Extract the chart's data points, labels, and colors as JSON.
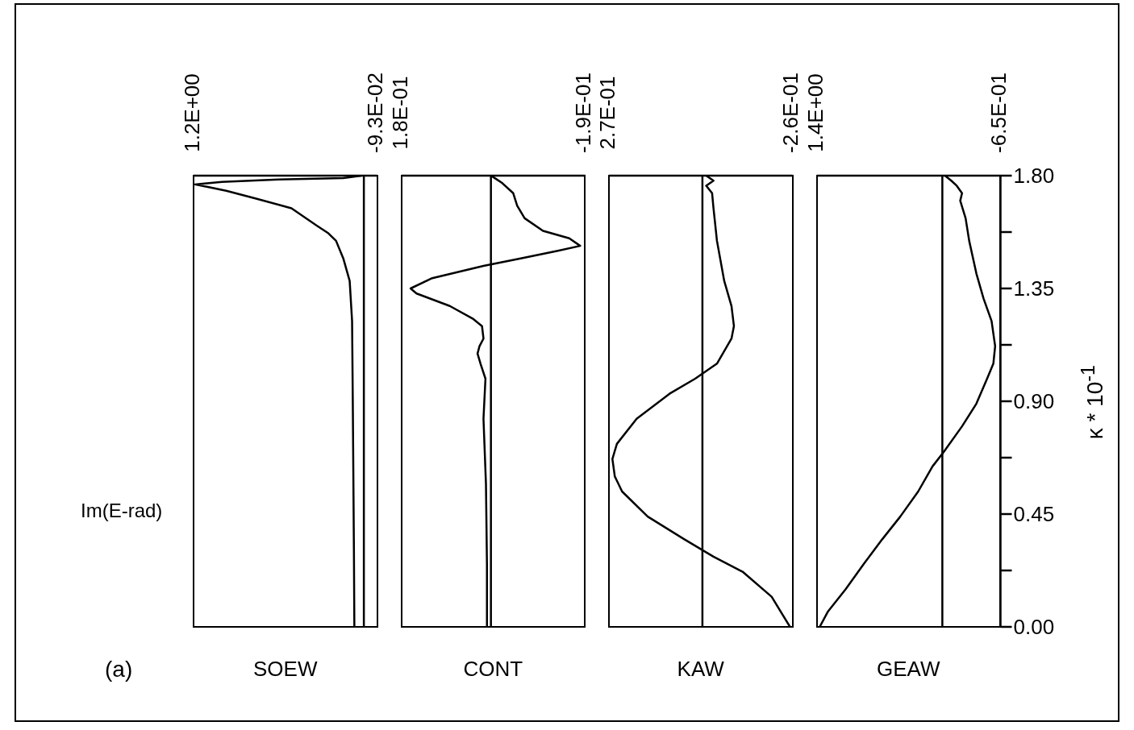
{
  "chart_data": [
    {
      "type": "line",
      "orientation": "horizontal",
      "title": "SOEW",
      "annotations": [
        "(a)",
        "Im(E-rad)"
      ],
      "color": "#000000",
      "tick_labels": "x",
      "ylim": [
        0,
        1.8
      ],
      "xlim": [
        1.2,
        -0.093
      ],
      "xticks": [
        {
          "value": -0.093,
          "label": "-9.3E-02"
        },
        {
          "value": 1.2,
          "label": "1.2E+00"
        }
      ],
      "ref_lines": [
        {
          "axis": "x",
          "value": 0
        }
      ],
      "x": [
        0,
        0.3,
        0.6,
        0.9,
        1.22,
        1.38,
        1.47,
        1.54,
        1.57,
        1.6,
        1.67,
        1.71,
        1.74,
        1.755,
        1.765,
        1.775,
        1.785,
        1.79,
        1.8
      ],
      "values": [
        0.067,
        0.07,
        0.074,
        0.078,
        0.083,
        0.1,
        0.145,
        0.196,
        0.25,
        0.33,
        0.51,
        0.77,
        0.97,
        1.1,
        1.19,
        1.0,
        0.6,
        0.145,
        0.016
      ]
    },
    {
      "type": "line",
      "orientation": "horizontal",
      "title": "CONT",
      "color": "#000000",
      "tick_labels": "x",
      "ylim": [
        0,
        1.8
      ],
      "xlim": [
        0.18,
        -0.19
      ],
      "xticks": [
        {
          "value": -0.19,
          "label": "-1.9E-01"
        },
        {
          "value": 0.18,
          "label": "1.8E-01"
        }
      ],
      "ref_lines": [
        {
          "axis": "x",
          "value": 0
        }
      ],
      "x": [
        0,
        0.25,
        0.57,
        0.83,
        0.99,
        1.05,
        1.09,
        1.12,
        1.15,
        1.2,
        1.23,
        1.28,
        1.33,
        1.35,
        1.39,
        1.44,
        1.47,
        1.5,
        1.52,
        1.55,
        1.58,
        1.63,
        1.68,
        1.73,
        1.77,
        1.79,
        1.8
      ],
      "values": [
        0.008,
        0.008,
        0.01,
        0.015,
        0.011,
        0.021,
        0.027,
        0.023,
        0.015,
        0.018,
        0.037,
        0.083,
        0.15,
        0.162,
        0.12,
        0.015,
        -0.06,
        -0.135,
        -0.18,
        -0.158,
        -0.105,
        -0.068,
        -0.053,
        -0.045,
        -0.023,
        -0.008,
        0
      ]
    },
    {
      "type": "line",
      "orientation": "horizontal",
      "title": "KAW",
      "color": "#000000",
      "tick_labels": "x",
      "ylim": [
        0,
        1.8
      ],
      "xlim": [
        0.27,
        -0.26
      ],
      "xticks": [
        {
          "value": -0.26,
          "label": "-2.6E-01"
        },
        {
          "value": 0.27,
          "label": "2.7E-01"
        }
      ],
      "ref_lines": [
        {
          "axis": "x",
          "value": 0
        }
      ],
      "x": [
        0,
        0.12,
        0.22,
        0.28,
        0.35,
        0.44,
        0.54,
        0.6,
        0.67,
        0.73,
        0.83,
        0.93,
        0.99,
        1.05,
        1.15,
        1.2,
        1.28,
        1.38,
        1.54,
        1.67,
        1.73,
        1.76,
        1.78,
        1.8
      ],
      "values": [
        -0.253,
        -0.2,
        -0.116,
        -0.032,
        0.053,
        0.158,
        0.232,
        0.253,
        0.26,
        0.247,
        0.19,
        0.095,
        0.021,
        -0.042,
        -0.084,
        -0.091,
        -0.084,
        -0.063,
        -0.042,
        -0.032,
        -0.028,
        -0.011,
        -0.032,
        -0.011
      ]
    },
    {
      "type": "line",
      "orientation": "horizontal",
      "title": "GEAW",
      "ylabel": "κ * 10$^{-1}$",
      "color": "#000000",
      "ylim": [
        0,
        1.8
      ],
      "yticks": [
        {
          "value": 0,
          "label": "0.00"
        },
        {
          "value": 0.225,
          "label": null
        },
        {
          "value": 0.45,
          "label": "0.45"
        },
        {
          "value": 0.675,
          "label": null
        },
        {
          "value": 0.9,
          "label": "0.90"
        },
        {
          "value": 1.125,
          "label": null
        },
        {
          "value": 1.35,
          "label": "1.35"
        },
        {
          "value": 1.575,
          "label": null
        },
        {
          "value": 1.8,
          "label": "1.80"
        }
      ],
      "xlim": [
        1.4,
        -0.65
      ],
      "xticks": [
        {
          "value": -0.65,
          "label": "-6.5E-01"
        },
        {
          "value": 1.4,
          "label": "1.4E+00"
        }
      ],
      "ref_lines": [
        {
          "axis": "x",
          "value": 0
        }
      ],
      "x": [
        0,
        0.06,
        0.15,
        0.25,
        0.35,
        0.44,
        0.54,
        0.64,
        0.7,
        0.8,
        0.89,
        0.99,
        1.05,
        1.12,
        1.22,
        1.31,
        1.41,
        1.54,
        1.63,
        1.7,
        1.73,
        1.76,
        1.78,
        1.8
      ],
      "values": [
        1.37,
        1.28,
        1.08,
        0.88,
        0.67,
        0.47,
        0.27,
        0.11,
        -0.02,
        -0.22,
        -0.38,
        -0.5,
        -0.57,
        -0.59,
        -0.55,
        -0.46,
        -0.38,
        -0.3,
        -0.26,
        -0.2,
        -0.22,
        -0.16,
        -0.1,
        -0.03
      ]
    }
  ]
}
